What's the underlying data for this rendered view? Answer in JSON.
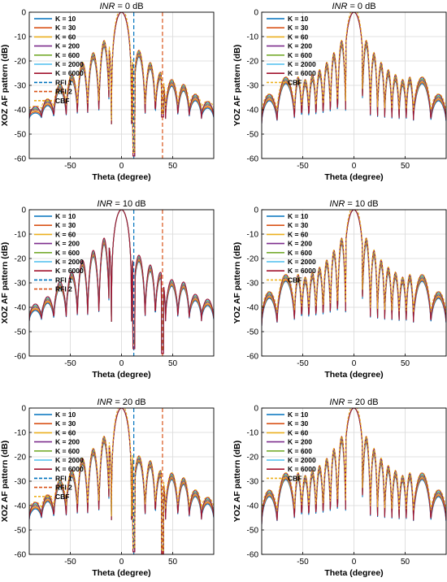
{
  "figure": {
    "inr_prefix": "INR",
    "inr_suffixes": [
      " = 0 dB",
      " = 10 dB",
      " = 20 dB"
    ]
  },
  "colors": {
    "K10": "#0072BD",
    "K30": "#D95319",
    "K60": "#EDB120",
    "K200": "#7E2F8E",
    "K600": "#77AC30",
    "K2000": "#4DBEEE",
    "K6000": "#A2142F",
    "RFI1": "#0072BD",
    "RFI2": "#D95319",
    "CBF": "#EDB120"
  },
  "chart_data": [
    {
      "type": "line",
      "title_prefix": "INR",
      "title_suffix": " = 0 dB",
      "xlabel": "Theta (degree)",
      "ylabel": "XOZ AF pattern (dB)",
      "xlim": [
        -90,
        90
      ],
      "ylim": [
        -60,
        0
      ],
      "xticks": [
        -50,
        0,
        50
      ],
      "yticks": [
        0,
        -10,
        -20,
        -30,
        -40,
        -50,
        -60
      ],
      "grid": true,
      "legend_position": "top-left",
      "legend": [
        "K = 10",
        "K = 30",
        "K = 60",
        "K = 200",
        "K = 600",
        "K = 2000",
        "K = 6000",
        "RFI 1",
        "RFI 2",
        "CBF"
      ],
      "nulls": [
        -78,
        -66,
        -54,
        -43,
        -33,
        -22,
        -12,
        11,
        23,
        33,
        43,
        55,
        66,
        78
      ],
      "null_depth": -41,
      "sidelobe_peaks": [
        -40,
        -37,
        -31,
        -27,
        -22,
        -18,
        -13,
        -17,
        -22,
        -26,
        -29,
        -31,
        -35,
        -38,
        -40
      ],
      "rfi1": 12,
      "rfi2": 40,
      "rfi1_null": -59,
      "rfi2_null": -43
    },
    {
      "type": "line",
      "title_prefix": "INR",
      "title_suffix": " = 0 dB",
      "xlabel": "Theta (degree)",
      "ylabel": "YOZ AF pattern (dB)",
      "xlim": [
        -90,
        90
      ],
      "ylim": [
        -60,
        0
      ],
      "xticks": [
        -50,
        0,
        50
      ],
      "yticks": [
        0,
        -10,
        -20,
        -30,
        -40,
        -50,
        -60
      ],
      "grid": true,
      "legend_position": "top-left",
      "legend": [
        "K = 10",
        "K = 30",
        "K = 60",
        "K = 200",
        "K = 600",
        "K = 2000",
        "K = 6000",
        "CBF"
      ],
      "nulls": [
        -75,
        -58,
        -51,
        -44,
        -37,
        -30,
        -23,
        -16,
        -8,
        8,
        16,
        23,
        30,
        37,
        44,
        51,
        58,
        75
      ],
      "null_depth": -43,
      "sidelobe_peaks": [
        -35,
        -28,
        -28,
        -29,
        -27,
        -25,
        -22,
        -18,
        -13,
        -13,
        -18,
        -22,
        -25,
        -27,
        -29,
        -28,
        -28,
        -35
      ]
    },
    {
      "type": "line",
      "title_prefix": "INR",
      "title_suffix": " = 10 dB",
      "xlabel": "Theta (degree)",
      "ylabel": "XOZ AF pattern (dB)",
      "xlim": [
        -90,
        90
      ],
      "ylim": [
        -60,
        0
      ],
      "xticks": [
        -50,
        0,
        50
      ],
      "yticks": [
        0,
        -10,
        -20,
        -30,
        -40,
        -50,
        -60
      ],
      "grid": true,
      "legend_position": "top-left",
      "legend": [
        "K = 10",
        "K = 30",
        "K = 60",
        "K = 200",
        "K = 600",
        "K = 2000",
        "K = 6000",
        "RFI 1",
        "RFI 2"
      ],
      "nulls": [
        -78,
        -66,
        -54,
        -43,
        -33,
        -22,
        -12,
        11,
        23,
        33,
        43,
        55,
        66,
        78
      ],
      "null_depth": -43,
      "sidelobe_peaks": [
        -40,
        -37,
        -31,
        -27,
        -22,
        -18,
        -13,
        -20,
        -24,
        -27,
        -30,
        -31,
        -36,
        -38,
        -40
      ],
      "rfi1": 12,
      "rfi2": 40,
      "rfi1_null": -57,
      "rfi2_null": -59
    },
    {
      "type": "line",
      "title_prefix": "INR",
      "title_suffix": " = 10 dB",
      "xlabel": "Theta (degree)",
      "ylabel": "YOZ AF pattern (dB)",
      "xlim": [
        -90,
        90
      ],
      "ylim": [
        -60,
        0
      ],
      "xticks": [
        -50,
        0,
        50
      ],
      "yticks": [
        0,
        -10,
        -20,
        -30,
        -40,
        -50,
        -60
      ],
      "grid": true,
      "legend_position": "top-left",
      "legend": [
        "K = 10",
        "K = 30",
        "K = 60",
        "K = 200",
        "K = 600",
        "K = 2000",
        "K = 6000",
        "CBF"
      ],
      "nulls": [
        -75,
        -58,
        -51,
        -44,
        -37,
        -30,
        -23,
        -16,
        -8,
        8,
        16,
        23,
        30,
        37,
        44,
        51,
        58,
        75
      ],
      "null_depth": -45,
      "sidelobe_peaks": [
        -35,
        -28,
        -28,
        -29,
        -27,
        -25,
        -22,
        -18,
        -13,
        -13,
        -18,
        -22,
        -25,
        -27,
        -29,
        -28,
        -28,
        -35
      ]
    },
    {
      "type": "line",
      "title_prefix": "INR",
      "title_suffix": " = 20 dB",
      "xlabel": "Theta (degree)",
      "ylabel": "XOZ AF pattern (dB)",
      "xlim": [
        -90,
        90
      ],
      "ylim": [
        -60,
        0
      ],
      "xticks": [
        -50,
        0,
        50
      ],
      "yticks": [
        0,
        -10,
        -20,
        -30,
        -40,
        -50,
        -60
      ],
      "grid": true,
      "legend_position": "top-left",
      "legend": [
        "K = 10",
        "K = 30",
        "K = 60",
        "K = 200",
        "K = 600",
        "K = 2000",
        "K = 6000",
        "RFI 1",
        "RFI 2",
        "CBF"
      ],
      "nulls": [
        -78,
        -66,
        -54,
        -43,
        -33,
        -22,
        -12,
        11,
        23,
        33,
        43,
        55,
        66,
        78
      ],
      "null_depth": -43,
      "sidelobe_peaks": [
        -40,
        -37,
        -31,
        -27,
        -22,
        -18,
        -13,
        -21,
        -23,
        -27,
        -28,
        -30,
        -35,
        -38,
        -40
      ],
      "rfi1": 12,
      "rfi2": 40,
      "rfi1_null": -59,
      "rfi2_null": -60
    },
    {
      "type": "line",
      "title_prefix": "INR",
      "title_suffix": " = 20 dB",
      "xlabel": "Theta (degree)",
      "ylabel": "YOZ AF pattern (dB)",
      "xlim": [
        -90,
        90
      ],
      "ylim": [
        -60,
        0
      ],
      "xticks": [
        -50,
        0,
        50
      ],
      "yticks": [
        0,
        -10,
        -20,
        -30,
        -40,
        -50,
        -60
      ],
      "grid": true,
      "legend_position": "top-left",
      "legend": [
        "K = 10",
        "K = 30",
        "K = 60",
        "K = 200",
        "K = 600",
        "K = 2000",
        "K = 6000",
        "CBF"
      ],
      "nulls": [
        -75,
        -58,
        -51,
        -44,
        -37,
        -30,
        -23,
        -16,
        -8,
        8,
        16,
        23,
        30,
        37,
        44,
        51,
        58,
        75
      ],
      "null_depth": -45,
      "sidelobe_peaks": [
        -35,
        -28,
        -28,
        -29,
        -27,
        -25,
        -22,
        -18,
        -13,
        -13,
        -18,
        -22,
        -25,
        -27,
        -29,
        -28,
        -28,
        -35
      ]
    }
  ]
}
